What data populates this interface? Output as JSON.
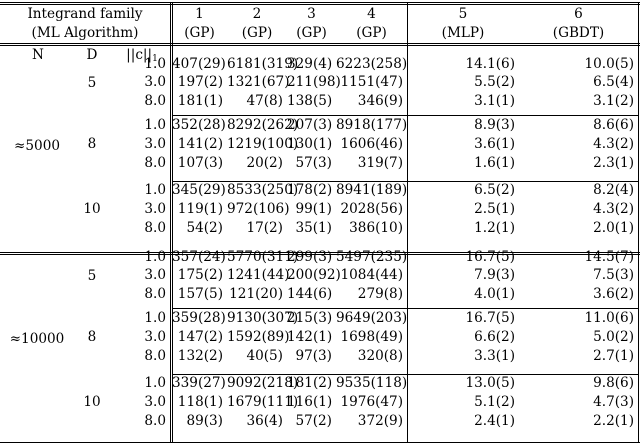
{
  "header": {
    "family_label": "Integrand family",
    "algo_label": "(ML Algorithm)",
    "col_N": "N",
    "col_D": "D",
    "col_c_main": "||c||",
    "col_c_sub": "1",
    "families": [
      {
        "num": "1",
        "algo": "(GP)"
      },
      {
        "num": "2",
        "algo": "(GP)"
      },
      {
        "num": "3",
        "algo": "(GP)"
      },
      {
        "num": "4",
        "algo": "(GP)"
      },
      {
        "num": "5",
        "algo": "(MLP)"
      },
      {
        "num": "6",
        "algo": "(GBDT)"
      }
    ]
  },
  "groups": [
    {
      "N": "≈5000",
      "blocks": [
        {
          "D": "5",
          "rows": [
            {
              "c": "1.0",
              "v": [
                "407(29)",
                "6181(319)",
                "329(4)",
                "6223(258)",
                "14.1(6)",
                "10.0(5)"
              ]
            },
            {
              "c": "3.0",
              "v": [
                "197(2)",
                "1321(67)",
                "211(98)",
                "1151(47)",
                "5.5(2)",
                "6.5(4)"
              ]
            },
            {
              "c": "8.0",
              "v": [
                "181(1)",
                "47(8)",
                "138(5)",
                "346(9)",
                "3.1(1)",
                "3.1(2)"
              ]
            }
          ]
        },
        {
          "D": "8",
          "rows": [
            {
              "c": "1.0",
              "v": [
                "352(28)",
                "8292(262)",
                "207(3)",
                "8918(177)",
                "8.9(3)",
                "8.6(6)"
              ]
            },
            {
              "c": "3.0",
              "v": [
                "141(2)",
                "1219(100)",
                "130(1)",
                "1606(46)",
                "3.6(1)",
                "4.3(2)"
              ]
            },
            {
              "c": "8.0",
              "v": [
                "107(3)",
                "20(2)",
                "57(3)",
                "319(7)",
                "1.6(1)",
                "2.3(1)"
              ]
            }
          ]
        },
        {
          "D": "10",
          "rows": [
            {
              "c": "1.0",
              "v": [
                "345(29)",
                "8533(250)",
                "178(2)",
                "8941(189)",
                "6.5(2)",
                "8.2(4)"
              ]
            },
            {
              "c": "3.0",
              "v": [
                "119(1)",
                "972(106)",
                "99(1)",
                "2028(56)",
                "2.5(1)",
                "4.3(2)"
              ]
            },
            {
              "c": "8.0",
              "v": [
                "54(2)",
                "17(2)",
                "35(1)",
                "386(10)",
                "1.2(1)",
                "2.0(1)"
              ]
            }
          ]
        }
      ]
    },
    {
      "N": "≈10000",
      "blocks": [
        {
          "D": "5",
          "rows": [
            {
              "c": "1.0",
              "v": [
                "357(24)",
                "5770(311)",
                "299(3)",
                "5497(235)",
                "16.7(5)",
                "14.5(7)"
              ]
            },
            {
              "c": "3.0",
              "v": [
                "175(2)",
                "1241(44)",
                "200(92)",
                "1084(44)",
                "7.9(3)",
                "7.5(3)"
              ]
            },
            {
              "c": "8.0",
              "v": [
                "157(5)",
                "121(20)",
                "144(6)",
                "279(8)",
                "4.0(1)",
                "3.6(2)"
              ]
            }
          ]
        },
        {
          "D": "8",
          "rows": [
            {
              "c": "1.0",
              "v": [
                "359(28)",
                "9130(307)",
                "215(3)",
                "9649(203)",
                "16.7(5)",
                "11.0(6)"
              ]
            },
            {
              "c": "3.0",
              "v": [
                "147(2)",
                "1592(89)",
                "142(1)",
                "1698(49)",
                "6.6(2)",
                "5.0(2)"
              ]
            },
            {
              "c": "8.0",
              "v": [
                "132(2)",
                "40(5)",
                "97(3)",
                "320(8)",
                "3.3(1)",
                "2.7(1)"
              ]
            }
          ]
        },
        {
          "D": "10",
          "rows": [
            {
              "c": "1.0",
              "v": [
                "339(27)",
                "9092(218)",
                "181(2)",
                "9535(118)",
                "13.0(5)",
                "9.8(6)"
              ]
            },
            {
              "c": "3.0",
              "v": [
                "118(1)",
                "1679(111)",
                "116(1)",
                "1976(47)",
                "5.1(2)",
                "4.7(3)"
              ]
            },
            {
              "c": "8.0",
              "v": [
                "89(3)",
                "36(4)",
                "57(2)",
                "372(9)",
                "2.4(1)",
                "2.2(1)"
              ]
            }
          ]
        }
      ]
    }
  ]
}
